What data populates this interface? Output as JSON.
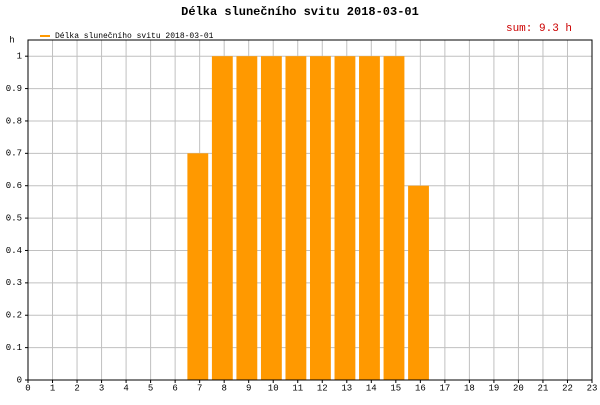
{
  "chart_data": {
    "type": "bar",
    "title": "Délka slunečního svitu 2018-03-01",
    "annotation": "sum: 9.3 h",
    "y_label": "h",
    "x": [
      0,
      1,
      2,
      3,
      4,
      5,
      6,
      7,
      8,
      9,
      10,
      11,
      12,
      13,
      14,
      15,
      16,
      17,
      18,
      19,
      20,
      21,
      22,
      23
    ],
    "xlim": [
      0,
      23
    ],
    "xticks": [
      0,
      1,
      2,
      3,
      4,
      5,
      6,
      7,
      8,
      9,
      10,
      11,
      12,
      13,
      14,
      15,
      16,
      17,
      18,
      19,
      20,
      21,
      22,
      23
    ],
    "series": [
      {
        "name": "Délka slunečního svitu 2018-03-01",
        "color": "#ff9900",
        "values": [
          0,
          0,
          0,
          0,
          0,
          0,
          0,
          0.7,
          1,
          1,
          1,
          1,
          1,
          1,
          1,
          1,
          0.6,
          0,
          0,
          0,
          0,
          0,
          0,
          0
        ]
      }
    ],
    "ylim": [
      0,
      1.05
    ],
    "yticks": [
      0,
      0.1,
      0.2,
      0.3,
      0.4,
      0.5,
      0.6,
      0.7,
      0.8,
      0.9,
      1
    ],
    "grid": true
  }
}
